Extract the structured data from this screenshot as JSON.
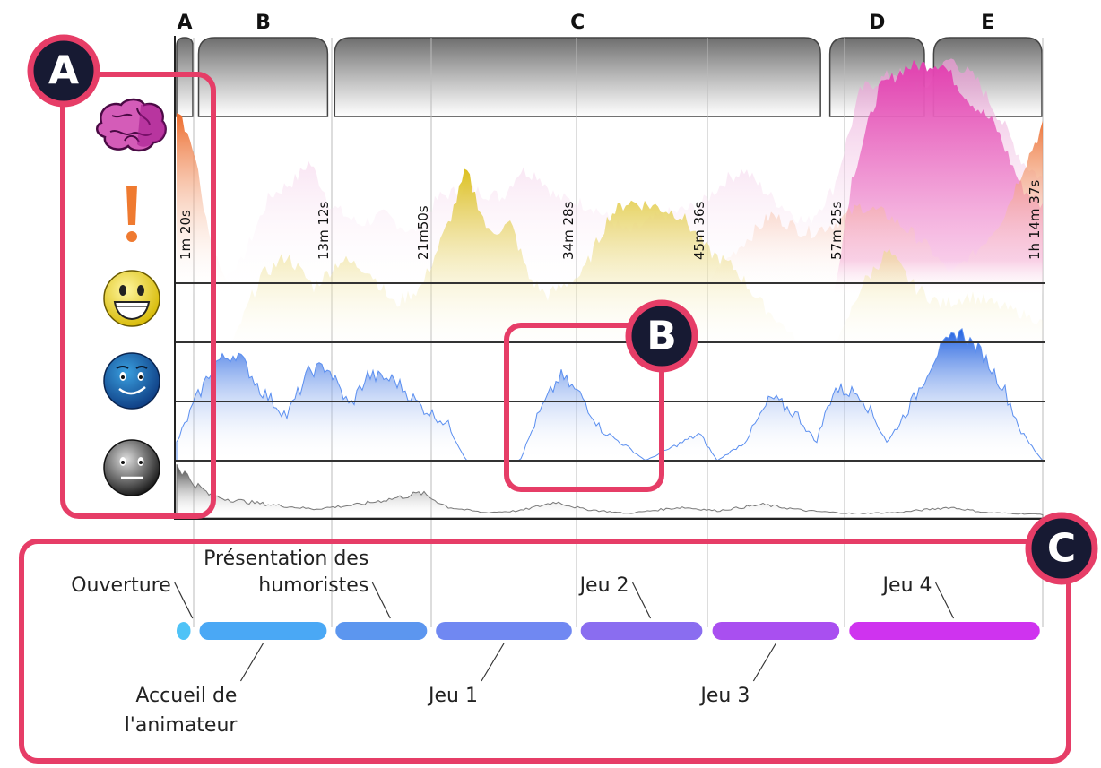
{
  "segments": [
    {
      "letter": "A",
      "start": 0,
      "end": 1.3
    },
    {
      "letter": "B",
      "start": 1.6,
      "end": 13.0
    },
    {
      "letter": "C",
      "start": 13.3,
      "end": 55.5
    },
    {
      "letter": "D",
      "start": 56.0,
      "end": 64.5
    },
    {
      "letter": "E",
      "start": 65.0,
      "end": 90
    }
  ],
  "time_markers": [
    {
      "label": "1m 20s",
      "t": 1.33
    },
    {
      "label": "13m 12s",
      "t": 13.2
    },
    {
      "label": "21m50s",
      "t": 21.83
    },
    {
      "label": "34m 28s",
      "t": 34.47
    },
    {
      "label": "45m 36s",
      "t": 45.6
    },
    {
      "label": "57m 25s",
      "t": 57.42
    },
    {
      "label": "1h 14m 37s",
      "t": 74.62
    }
  ],
  "emotion_rows": [
    {
      "icon": "brain-icon",
      "color": "#e050b0"
    },
    {
      "icon": "exclamation-icon",
      "color": "#f07a30"
    },
    {
      "icon": "laughing-face-icon",
      "color": "#e0c020"
    },
    {
      "icon": "smiling-face-icon",
      "color": "#2a6be0"
    },
    {
      "icon": "neutral-face-icon",
      "color": "#333333"
    }
  ],
  "phases": [
    {
      "label": "Ouverture",
      "start": 0,
      "end": 1.3,
      "color": "#4fc3f7",
      "label_pos": "above"
    },
    {
      "label": "Accueil de\nl'animateur",
      "start": 1.6,
      "end": 13.0,
      "color": "#4aa8f5",
      "label_pos": "below"
    },
    {
      "label": "Présentation des\nhumoristes",
      "start": 13.3,
      "end": 21.7,
      "color": "#5c96ef",
      "label_pos": "above"
    },
    {
      "label": "Jeu 1",
      "start": 22.0,
      "end": 34.3,
      "color": "#7088f2",
      "label_pos": "below"
    },
    {
      "label": "Jeu 2",
      "start": 34.6,
      "end": 45.4,
      "color": "#8a6df0",
      "label_pos": "above"
    },
    {
      "label": "Jeu 3",
      "start": 45.8,
      "end": 57.2,
      "color": "#a94ff0",
      "label_pos": "below"
    },
    {
      "label": "Jeu 4",
      "start": 57.6,
      "end": 74.6,
      "color": "#cf33ef",
      "label_pos": "above"
    }
  ],
  "callouts": [
    {
      "letter": "A",
      "color": "#e63d67"
    },
    {
      "letter": "B",
      "color": "#e63d67"
    },
    {
      "letter": "C",
      "color": "#e63d67"
    }
  ]
}
